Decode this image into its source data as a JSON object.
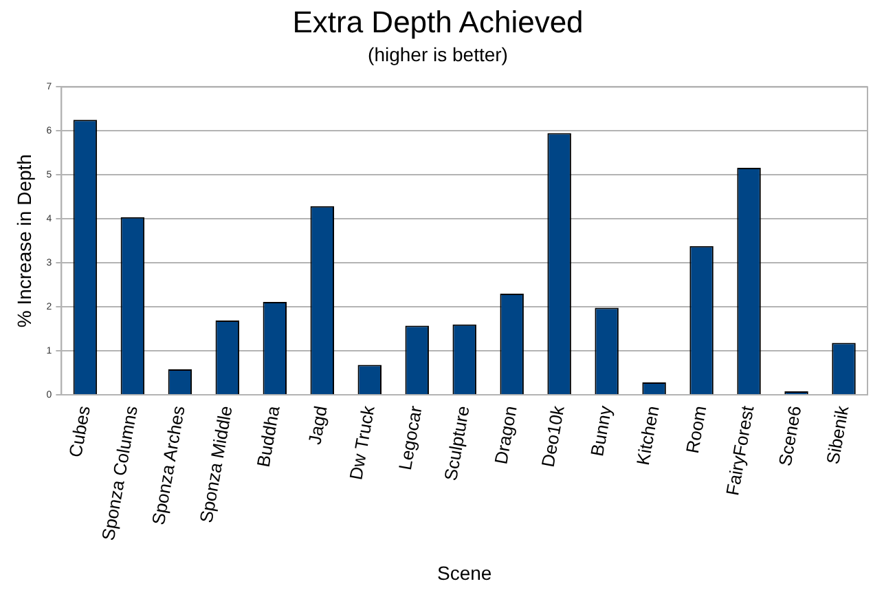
{
  "chart_data": {
    "type": "bar",
    "title": "Extra Depth Achieved",
    "subtitle": "(higher is better)",
    "xlabel": "Scene",
    "ylabel": "% Increase in Depth",
    "categories": [
      "Cubes",
      "Sponza Columns",
      "Sponza Arches",
      "Sponza Middle",
      "Buddha",
      "Jagd",
      "Dw Truck",
      "Legocar",
      "Sculpture",
      "Dragon",
      "Deo10k",
      "Bunny",
      "Kitchen",
      "Room",
      "FairyForest",
      "Scene6",
      "Sibenik"
    ],
    "values": [
      6.25,
      4.04,
      0.58,
      1.69,
      2.11,
      4.29,
      0.68,
      1.57,
      1.6,
      2.3,
      5.95,
      1.98,
      0.28,
      3.38,
      5.16,
      0.08,
      1.18
    ],
    "color": "#004586",
    "ylim": [
      0,
      7
    ],
    "yticks": [
      0,
      1,
      2,
      3,
      4,
      5,
      6,
      7
    ],
    "grid": "y",
    "legend": false
  }
}
